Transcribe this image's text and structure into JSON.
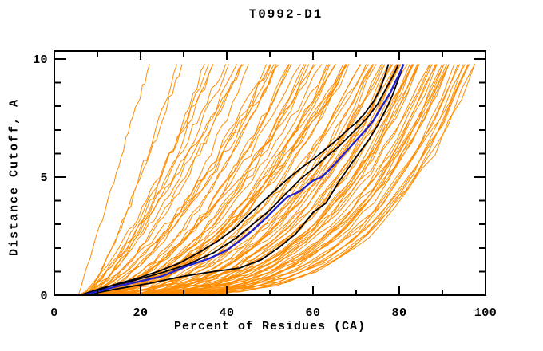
{
  "chart_data": {
    "type": "line",
    "title": "T0992-D1",
    "xlabel": "Percent of Residues (CA)",
    "ylabel": "Distance Cutoff, A",
    "xlim": [
      0,
      100
    ],
    "ylim": [
      0,
      10.3
    ],
    "x_major_ticks": [
      0,
      20,
      40,
      60,
      80,
      100
    ],
    "x_minor_step": 10,
    "y_major_ticks": [
      0,
      5,
      10
    ],
    "y_minor_step": 1,
    "grid": false,
    "legend": null,
    "cutoff_top": 9.78,
    "colors": {
      "frame": "#000000",
      "ensemble": "#ff8c00",
      "reference": "#000000",
      "highlight": "#2222cc",
      "background": "#ffffff"
    },
    "series": [
      {
        "name": "reference-model-1",
        "role": "reference",
        "width": 1.8,
        "points": [
          [
            6,
            0
          ],
          [
            10,
            0.2
          ],
          [
            14,
            0.45
          ],
          [
            19,
            0.7
          ],
          [
            24,
            1.0
          ],
          [
            29,
            1.35
          ],
          [
            34,
            1.85
          ],
          [
            38,
            2.3
          ],
          [
            42,
            2.85
          ],
          [
            45,
            3.4
          ],
          [
            48,
            3.9
          ],
          [
            51,
            4.4
          ],
          [
            54,
            4.9
          ],
          [
            57,
            5.35
          ],
          [
            60,
            5.75
          ],
          [
            63,
            6.2
          ],
          [
            66,
            6.65
          ],
          [
            68,
            7.0
          ],
          [
            70,
            7.3
          ],
          [
            72,
            7.7
          ],
          [
            74,
            8.2
          ],
          [
            75.5,
            8.7
          ],
          [
            76.5,
            9.2
          ],
          [
            77.5,
            9.78
          ]
        ]
      },
      {
        "name": "reference-model-2",
        "role": "reference",
        "width": 1.8,
        "points": [
          [
            6,
            0
          ],
          [
            11,
            0.3
          ],
          [
            17,
            0.55
          ],
          [
            24,
            0.9
          ],
          [
            31,
            1.3
          ],
          [
            37,
            1.8
          ],
          [
            42,
            2.4
          ],
          [
            46,
            3.0
          ],
          [
            50,
            3.6
          ],
          [
            54,
            4.35
          ],
          [
            57,
            4.9
          ],
          [
            60,
            5.35
          ],
          [
            63,
            5.85
          ],
          [
            66,
            6.3
          ],
          [
            69,
            6.85
          ],
          [
            71,
            7.2
          ],
          [
            73,
            7.6
          ],
          [
            75,
            8.1
          ],
          [
            76.5,
            8.6
          ],
          [
            78,
            9.1
          ],
          [
            79,
            9.45
          ],
          [
            79.8,
            9.78
          ]
        ]
      },
      {
        "name": "reference-model-3",
        "role": "reference",
        "width": 1.8,
        "points": [
          [
            7,
            0
          ],
          [
            14,
            0.25
          ],
          [
            22,
            0.5
          ],
          [
            30,
            0.8
          ],
          [
            37,
            1.0
          ],
          [
            43,
            1.15
          ],
          [
            48,
            1.5
          ],
          [
            52,
            2.0
          ],
          [
            56,
            2.6
          ],
          [
            60,
            3.5
          ],
          [
            63,
            3.9
          ],
          [
            66,
            4.8
          ],
          [
            69,
            5.6
          ],
          [
            71,
            6.1
          ],
          [
            73,
            6.6
          ],
          [
            75,
            7.2
          ],
          [
            77,
            7.9
          ],
          [
            78.5,
            8.5
          ],
          [
            79.5,
            9.0
          ],
          [
            80.3,
            9.4
          ],
          [
            81,
            9.78
          ]
        ]
      },
      {
        "name": "highlighted-model",
        "role": "highlight",
        "width": 2.4,
        "points": [
          [
            6.5,
            0
          ],
          [
            10,
            0.15
          ],
          [
            14,
            0.35
          ],
          [
            19,
            0.55
          ],
          [
            25,
            0.8
          ],
          [
            31,
            1.25
          ],
          [
            36,
            1.55
          ],
          [
            40,
            1.9
          ],
          [
            43,
            2.3
          ],
          [
            46,
            2.75
          ],
          [
            49,
            3.25
          ],
          [
            52,
            3.8
          ],
          [
            54,
            4.15
          ],
          [
            57,
            4.4
          ],
          [
            60,
            4.85
          ],
          [
            62,
            5.0
          ],
          [
            64,
            5.35
          ],
          [
            66,
            5.75
          ],
          [
            68,
            6.15
          ],
          [
            70,
            6.55
          ],
          [
            72,
            6.95
          ],
          [
            74,
            7.4
          ],
          [
            75.5,
            7.85
          ],
          [
            77,
            8.3
          ],
          [
            78,
            8.6
          ],
          [
            79,
            9.0
          ],
          [
            80,
            9.35
          ],
          [
            81,
            9.78
          ]
        ]
      }
    ],
    "orange_ensemble": {
      "count": 95,
      "seed": 20181,
      "start_x_min": 5,
      "start_x_max": 8,
      "end_x_min": 21,
      "end_x_max": 97,
      "end_x_skew": 0.55,
      "shape_min": 1.15,
      "shape_max": 4.2,
      "y_top": 9.78,
      "jitter": 0.35,
      "points_per_curve": 30
    }
  }
}
